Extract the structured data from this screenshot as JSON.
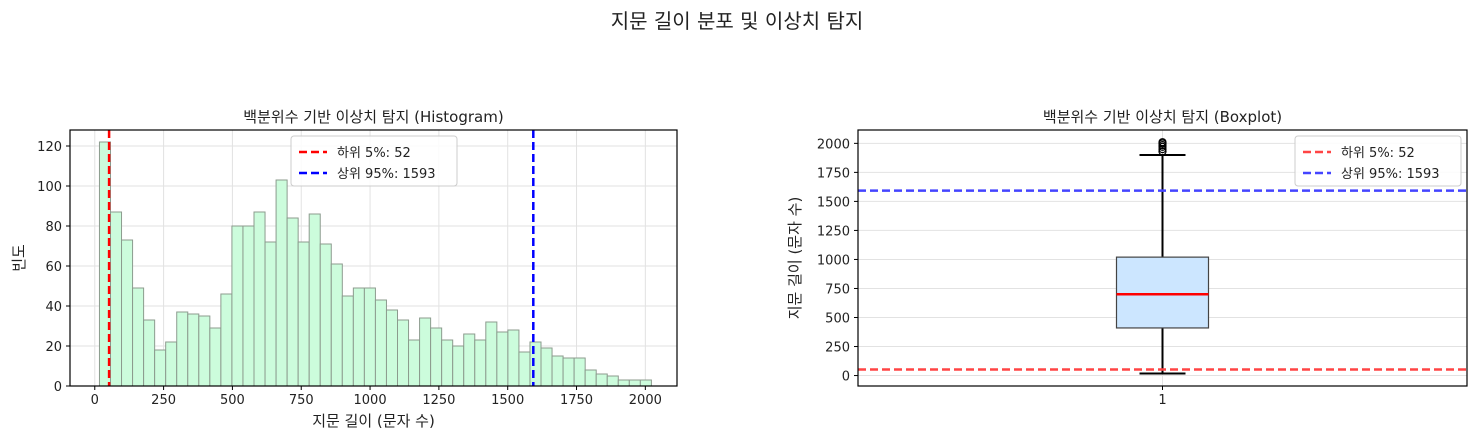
{
  "suptitle": "지문 길이 분포 및 이상치 탐지",
  "chart_data": [
    {
      "type": "bar",
      "subtype": "histogram",
      "title": "백분위수 기반 이상치 탐지 (Histogram)",
      "xlabel": "지문 길이 (문자 수)",
      "ylabel": "빈도",
      "xlim": [
        -90,
        2115
      ],
      "ylim": [
        0,
        128
      ],
      "xticks": [
        0,
        250,
        500,
        750,
        1000,
        1250,
        1500,
        1750,
        2000
      ],
      "yticks": [
        0,
        20,
        40,
        60,
        80,
        100,
        120
      ],
      "grid": true,
      "bin_start": 17,
      "bin_width": 40.1,
      "values": [
        122,
        87,
        73,
        49,
        33,
        18,
        22,
        37,
        36,
        35,
        29,
        46,
        80,
        80,
        87,
        72,
        103,
        84,
        72,
        86,
        71,
        61,
        45,
        49,
        49,
        43,
        38,
        33,
        23,
        34,
        29,
        23,
        20,
        26,
        23,
        32,
        27,
        28,
        17,
        22,
        19,
        15,
        14,
        14,
        8,
        6,
        5,
        3,
        3,
        3
      ],
      "bar_color": "#ccfcdc",
      "edge_color": "#8c9b8e",
      "vlines": [
        {
          "x": 52,
          "color": "#ff0000",
          "label": "하위 5%: 52"
        },
        {
          "x": 1593,
          "color": "#0000ff",
          "label": "상위 95%: 1593"
        }
      ],
      "legend": [
        "하위 5%: 52",
        "상위 95%: 1593"
      ],
      "legend_position": "upper center"
    },
    {
      "type": "box",
      "title": "백분위수 기반 이상치 탐지 (Boxplot)",
      "xlabel": "",
      "ylabel": "지문 길이 (문자 수)",
      "categories": [
        "1"
      ],
      "ylim": [
        -90,
        2115
      ],
      "yticks": [
        0,
        250,
        500,
        750,
        1000,
        1250,
        1500,
        1750,
        2000
      ],
      "grid": true,
      "box": {
        "whisker_low": 18,
        "q1": 410,
        "median": 700,
        "q3": 1020,
        "whisker_high": 1900,
        "outliers": [
          1930,
          1950,
          1970,
          1985,
          2000,
          2010
        ]
      },
      "box_color": "#cce6ff",
      "median_color": "#ff0000",
      "hlines": [
        {
          "y": 52,
          "color": "#ff4444",
          "label": "하위 5%: 52"
        },
        {
          "y": 1593,
          "color": "#4444ff",
          "label": "상위 95%: 1593"
        }
      ],
      "legend": [
        "하위 5%: 52",
        "상위 95%: 1593"
      ],
      "legend_position": "upper right"
    }
  ]
}
